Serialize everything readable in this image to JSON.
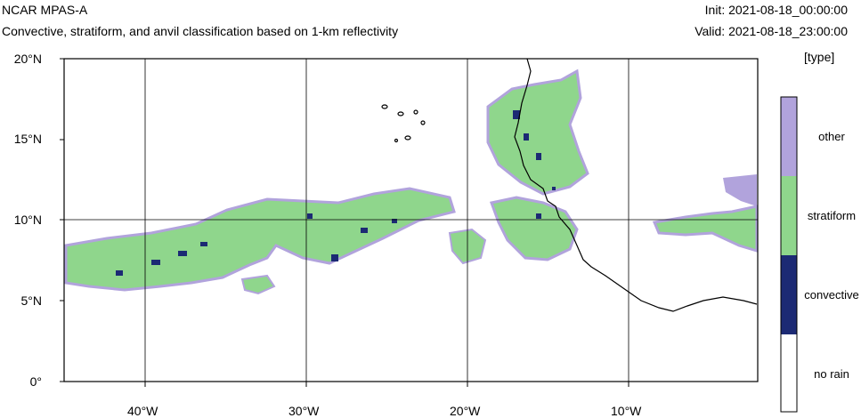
{
  "header": {
    "title": "NCAR MPAS-A",
    "subtitle": "Convective, stratiform, and anvil classification based on 1-km reflectivity",
    "init": "Init: 2021-08-18_00:00:00",
    "valid": "Valid: 2021-08-18_23:00:00"
  },
  "map": {
    "lat_labels": [
      "20°N",
      "15°N",
      "10°N",
      "5°N",
      "0°"
    ],
    "lon_labels": [
      "40°W",
      "30°W",
      "20°W",
      "10°W"
    ],
    "extent": {
      "lon_min": -45,
      "lon_max": -2,
      "lat_min": 0,
      "lat_max": 20
    },
    "gridlines": {
      "lons": [
        -40,
        -30,
        -20,
        -10
      ],
      "lats": [
        10
      ]
    }
  },
  "colorbar": {
    "units": "[type]",
    "categories": [
      {
        "label": "other",
        "color": "#b1a3dc"
      },
      {
        "label": "stratiform",
        "color": "#8fd68c"
      },
      {
        "label": "convective",
        "color": "#1c2a74"
      },
      {
        "label": "no rain",
        "color": "#ffffff"
      }
    ]
  }
}
